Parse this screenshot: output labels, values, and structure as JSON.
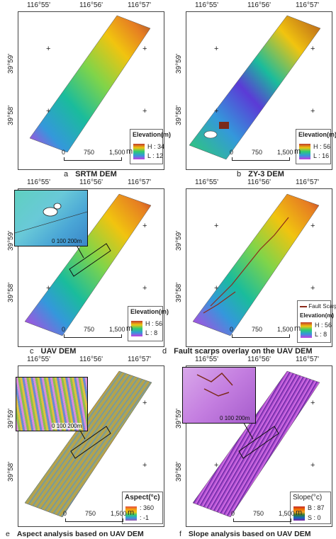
{
  "coords": {
    "lon": [
      "116°55'",
      "116°56'",
      "116°57'"
    ],
    "lat": [
      "39°59'",
      "39°58'"
    ]
  },
  "scale": {
    "zero": "0",
    "mid": "750",
    "end": "1,500",
    "unit": "m"
  },
  "inset_scale": {
    "zero": "0",
    "mid": "100",
    "end": "200",
    "unit": "m"
  },
  "panels": [
    {
      "letter": "a",
      "caption": "SRTM DEM",
      "legend_title": "Elevation(m)",
      "hi": "H : 34",
      "lo": "L : 12"
    },
    {
      "letter": "b",
      "caption": "ZY-3 DEM",
      "legend_title": "Elevation(m)",
      "hi": "H : 56",
      "lo": "L : 16"
    },
    {
      "letter": "c",
      "caption": "UAV DEM",
      "legend_title": "Elevation(m)",
      "hi": "H : 56",
      "lo": "L : 8"
    },
    {
      "letter": "d",
      "caption": "Fault scarps overlay on the UAV DEM",
      "legend_title": "Elevation(m)",
      "hi": "H : 56",
      "lo": "L : 8",
      "fault_label": "Fault Scarp"
    },
    {
      "letter": "e",
      "caption": "Aspect analysis based on UAV DEM",
      "legend_title": "Aspect(°c)",
      "hi": ": 360",
      "lo": ": -1"
    },
    {
      "letter": "f",
      "caption": "Slope analysis based on UAV DEM",
      "legend_title": "Slope(°c)",
      "hi": "B : 87",
      "lo": "S : 0"
    }
  ],
  "colors": {
    "elev_ramp": [
      "#c0392b",
      "#e67e22",
      "#f1c40f",
      "#7fd44a",
      "#2ecc71",
      "#1abc9c",
      "#3498db",
      "#5b3bd6",
      "#c43ee0"
    ],
    "aspect_ramp": [
      "#e74c3c",
      "#f39c12",
      "#f1c40f",
      "#2ecc71",
      "#3498db",
      "#9b59b6"
    ],
    "slope_ramp": [
      "#7b1fa2",
      "#1565c0",
      "#2e7d32",
      "#f9a825",
      "#ef6c00",
      "#c62828"
    ],
    "fault": "#8b2a1a"
  }
}
